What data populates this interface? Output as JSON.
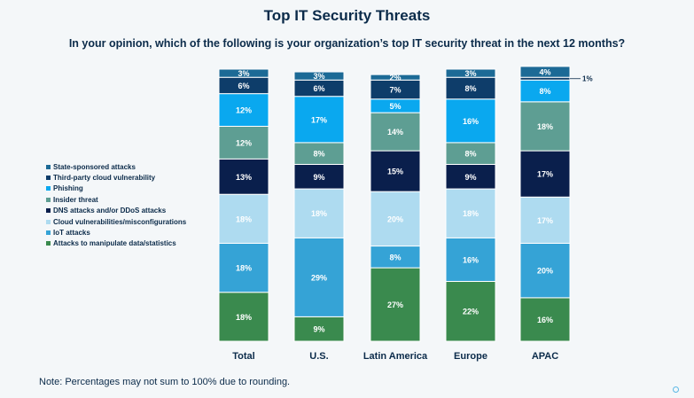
{
  "page": {
    "title": "Top IT Security Threats",
    "subtitle": "In your opinion, which of the following is your organization’s top IT security threat in the next 12 months?",
    "note": "Note: Percentages may not sum to 100% due to rounding."
  },
  "chart_data": {
    "type": "bar",
    "stacked": true,
    "title": "Top IT Security Threats",
    "subtitle": "In your opinion, which of the following is your organization’s top IT security threat in the next 12 months?",
    "categories": [
      "Total",
      "U.S.",
      "Latin America",
      "Europe",
      "APAC"
    ],
    "series": [
      {
        "name": "Attacks to manipulate data/statistics",
        "color": "#3a8a4e",
        "values": [
          18,
          9,
          27,
          22,
          16
        ]
      },
      {
        "name": "IoT attacks",
        "color": "#35a3d6",
        "values": [
          18,
          29,
          8,
          16,
          20
        ]
      },
      {
        "name": "Cloud vulnerabilities/misconfigurations",
        "color": "#aedbf0",
        "values": [
          18,
          18,
          20,
          18,
          17
        ]
      },
      {
        "name": "DNS attacks and/or DDoS attacks",
        "color": "#0a1f4c",
        "values": [
          13,
          9,
          15,
          9,
          17
        ]
      },
      {
        "name": "Insider threat",
        "color": "#5e9e93",
        "values": [
          12,
          8,
          14,
          8,
          18
        ]
      },
      {
        "name": "Phishing",
        "color": "#0aa8ef",
        "values": [
          12,
          17,
          5,
          16,
          8
        ]
      },
      {
        "name": "Third-party cloud vulnerability",
        "color": "#0e3d6a",
        "values": [
          6,
          6,
          7,
          8,
          1
        ]
      },
      {
        "name": "State-sponsored attacks",
        "color": "#1c6a96",
        "values": [
          3,
          3,
          2,
          3,
          4
        ]
      }
    ],
    "legend_order": [
      "State-sponsored attacks",
      "Third-party cloud vulnerability",
      "Phishing",
      "Insider threat",
      "DNS attacks and/or DDoS attacks",
      "Cloud vulnerabilities/misconfigurations",
      "IoT attacks",
      "Attacks to manipulate data/statistics"
    ],
    "legend_position": "left",
    "grid": false
  }
}
